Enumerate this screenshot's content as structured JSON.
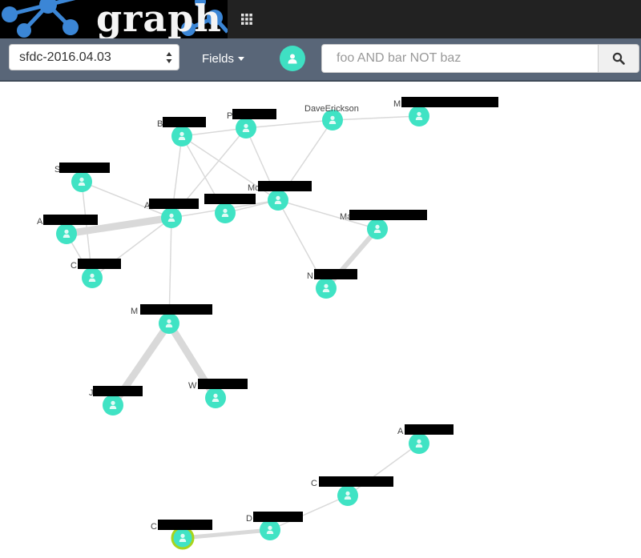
{
  "header": {
    "logo_text": "graph",
    "grid_icon": "grid-icon"
  },
  "toolbar": {
    "index_value": "sfdc-2016.04.03",
    "fields_label": "Fields",
    "search_placeholder": "foo AND bar NOT baz",
    "search_icon": "search-icon",
    "person_icon": "person-icon"
  },
  "graph": {
    "node_color": "#40e3c4",
    "edge_color": "#d9d9d9",
    "selected_ring_color": "#a8d41c",
    "nodes": [
      {
        "id": "n1",
        "label": "B"
      },
      {
        "id": "n2",
        "label": "P"
      },
      {
        "id": "n3",
        "label": "DaveErickson"
      },
      {
        "id": "n4",
        "label": "M"
      },
      {
        "id": "n5",
        "label": "S"
      },
      {
        "id": "n6",
        "label": "A"
      },
      {
        "id": "n7",
        "label": "A"
      },
      {
        "id": "n8",
        "label": ""
      },
      {
        "id": "n9",
        "label": "Mc"
      },
      {
        "id": "n10",
        "label": "Ma"
      },
      {
        "id": "n11",
        "label": "C"
      },
      {
        "id": "n12",
        "label": "N"
      },
      {
        "id": "n13",
        "label": "M"
      },
      {
        "id": "n14",
        "label": "J"
      },
      {
        "id": "n15",
        "label": "W"
      },
      {
        "id": "n16",
        "label": "A"
      },
      {
        "id": "n17",
        "label": "C"
      },
      {
        "id": "n18",
        "label": "D"
      },
      {
        "id": "n19",
        "label": "C"
      }
    ]
  }
}
